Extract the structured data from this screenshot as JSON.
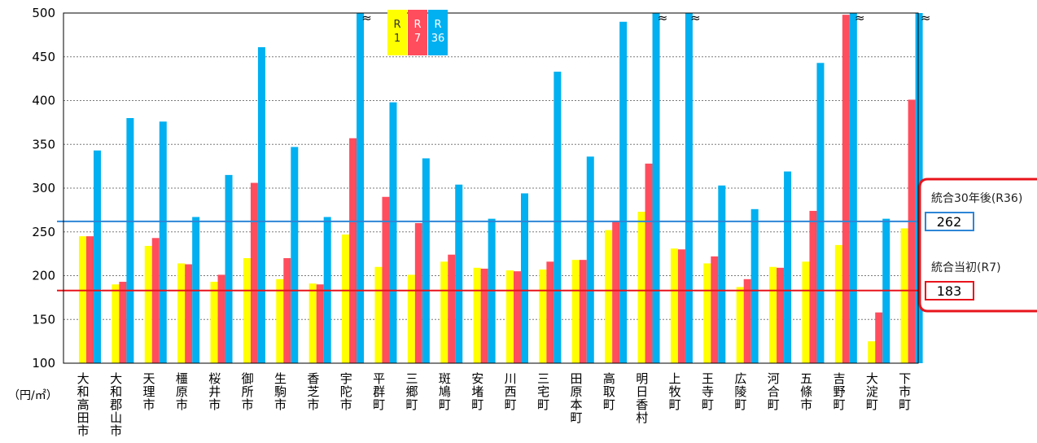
{
  "chart_data": {
    "type": "bar",
    "unit": "（円/㎡）",
    "y_axis": {
      "min": 100,
      "max": 500,
      "ticks": [
        "100",
        "150",
        "200",
        "250",
        "300",
        "350",
        "400",
        "450",
        "500"
      ]
    },
    "grid": "dotted-horizontal",
    "break_mark": "≈",
    "categories": [
      "大和高田市",
      "大和郡山市",
      "天理市",
      "橿原市",
      "桜井市",
      "御所市",
      "生駒市",
      "香芝市",
      "宇陀市",
      "平群町",
      "三郷町",
      "斑鳩町",
      "安堵町",
      "川西町",
      "三宅町",
      "田原本町",
      "高取町",
      "明日香村",
      "上牧町",
      "王寺町",
      "広陵町",
      "河合町",
      "五條市",
      "吉野町",
      "大淀町",
      "下市町"
    ],
    "series": [
      {
        "name": "R1",
        "legend": [
          "R",
          "1"
        ],
        "color": "#ffff00",
        "values": [
          245,
          190,
          234,
          214,
          193,
          220,
          196,
          191,
          247,
          210,
          201,
          216,
          209,
          206,
          207,
          218,
          252,
          273,
          231,
          214,
          187,
          210,
          216,
          235,
          125,
          254
        ]
      },
      {
        "name": "R7",
        "legend": [
          "R",
          "7"
        ],
        "color": "#ff4d5e",
        "values": [
          245,
          193,
          243,
          213,
          201,
          306,
          220,
          190,
          357,
          290,
          260,
          224,
          208,
          205,
          216,
          218,
          262,
          328,
          230,
          222,
          196,
          209,
          274,
          498,
          158,
          401
        ]
      },
      {
        "name": "R36",
        "legend": [
          "R",
          "36"
        ],
        "color": "#00b0f0",
        "values": [
          343,
          380,
          376,
          267,
          315,
          461,
          347,
          267,
          500,
          398,
          334,
          304,
          265,
          294,
          433,
          336,
          490,
          500,
          500,
          303,
          276,
          319,
          443,
          500,
          265,
          500
        ]
      }
    ],
    "break_categories": [
      8,
      17,
      18,
      23,
      25
    ],
    "reference_lines": [
      {
        "label": "統合30年後(R36)",
        "value": 262,
        "display": "262",
        "color": "#2e86d6"
      },
      {
        "label": "統合当初(R7)",
        "value": 183,
        "display": "183",
        "color": "#e8141c"
      }
    ]
  }
}
